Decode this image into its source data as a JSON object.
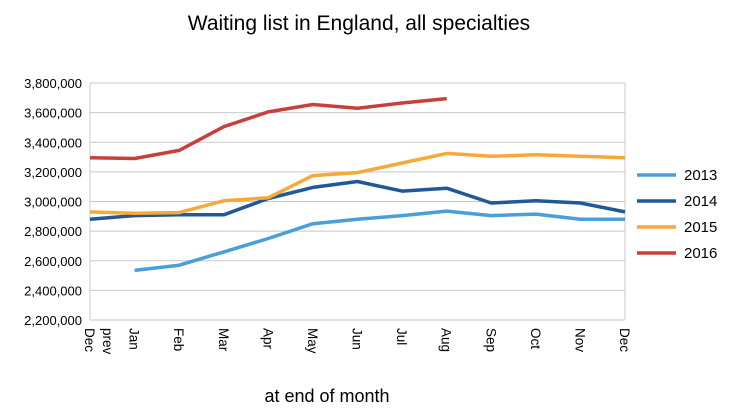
{
  "chart_data": {
    "type": "line",
    "title": "Waiting list in England, all specialties",
    "xlabel": "at end of month",
    "ylabel": "",
    "categories": [
      "Dec prev",
      "Jan",
      "Feb",
      "Mar",
      "Apr",
      "May",
      "Jun",
      "Jul",
      "Aug",
      "Sep",
      "Oct",
      "Nov",
      "Dec"
    ],
    "yticks": [
      "2,200,000",
      "2,400,000",
      "2,600,000",
      "2,800,000",
      "3,000,000",
      "3,200,000",
      "3,400,000",
      "3,600,000",
      "3,800,000"
    ],
    "ylim": [
      2200000,
      3800000
    ],
    "grid": true,
    "legend": "right",
    "series": [
      {
        "name": "2013",
        "color": "#4a9fd8",
        "values": [
          null,
          2535000,
          2570000,
          2660000,
          2750000,
          2850000,
          2880000,
          2905000,
          2935000,
          2905000,
          2915000,
          2880000,
          2880000
        ]
      },
      {
        "name": "2014",
        "color": "#1f5a96",
        "values": [
          2880000,
          2905000,
          2910000,
          2910000,
          3020000,
          3095000,
          3135000,
          3070000,
          3090000,
          2990000,
          3005000,
          2990000,
          2930000
        ]
      },
      {
        "name": "2015",
        "color": "#f5a93a",
        "values": [
          2930000,
          2920000,
          2925000,
          3005000,
          3025000,
          3175000,
          3195000,
          3260000,
          3325000,
          3305000,
          3315000,
          3305000,
          3295000
        ]
      },
      {
        "name": "2016",
        "color": "#c8403a",
        "values": [
          3295000,
          3290000,
          3345000,
          3505000,
          3605000,
          3655000,
          3630000,
          3665000,
          3695000,
          null,
          null,
          null,
          null
        ]
      }
    ]
  }
}
